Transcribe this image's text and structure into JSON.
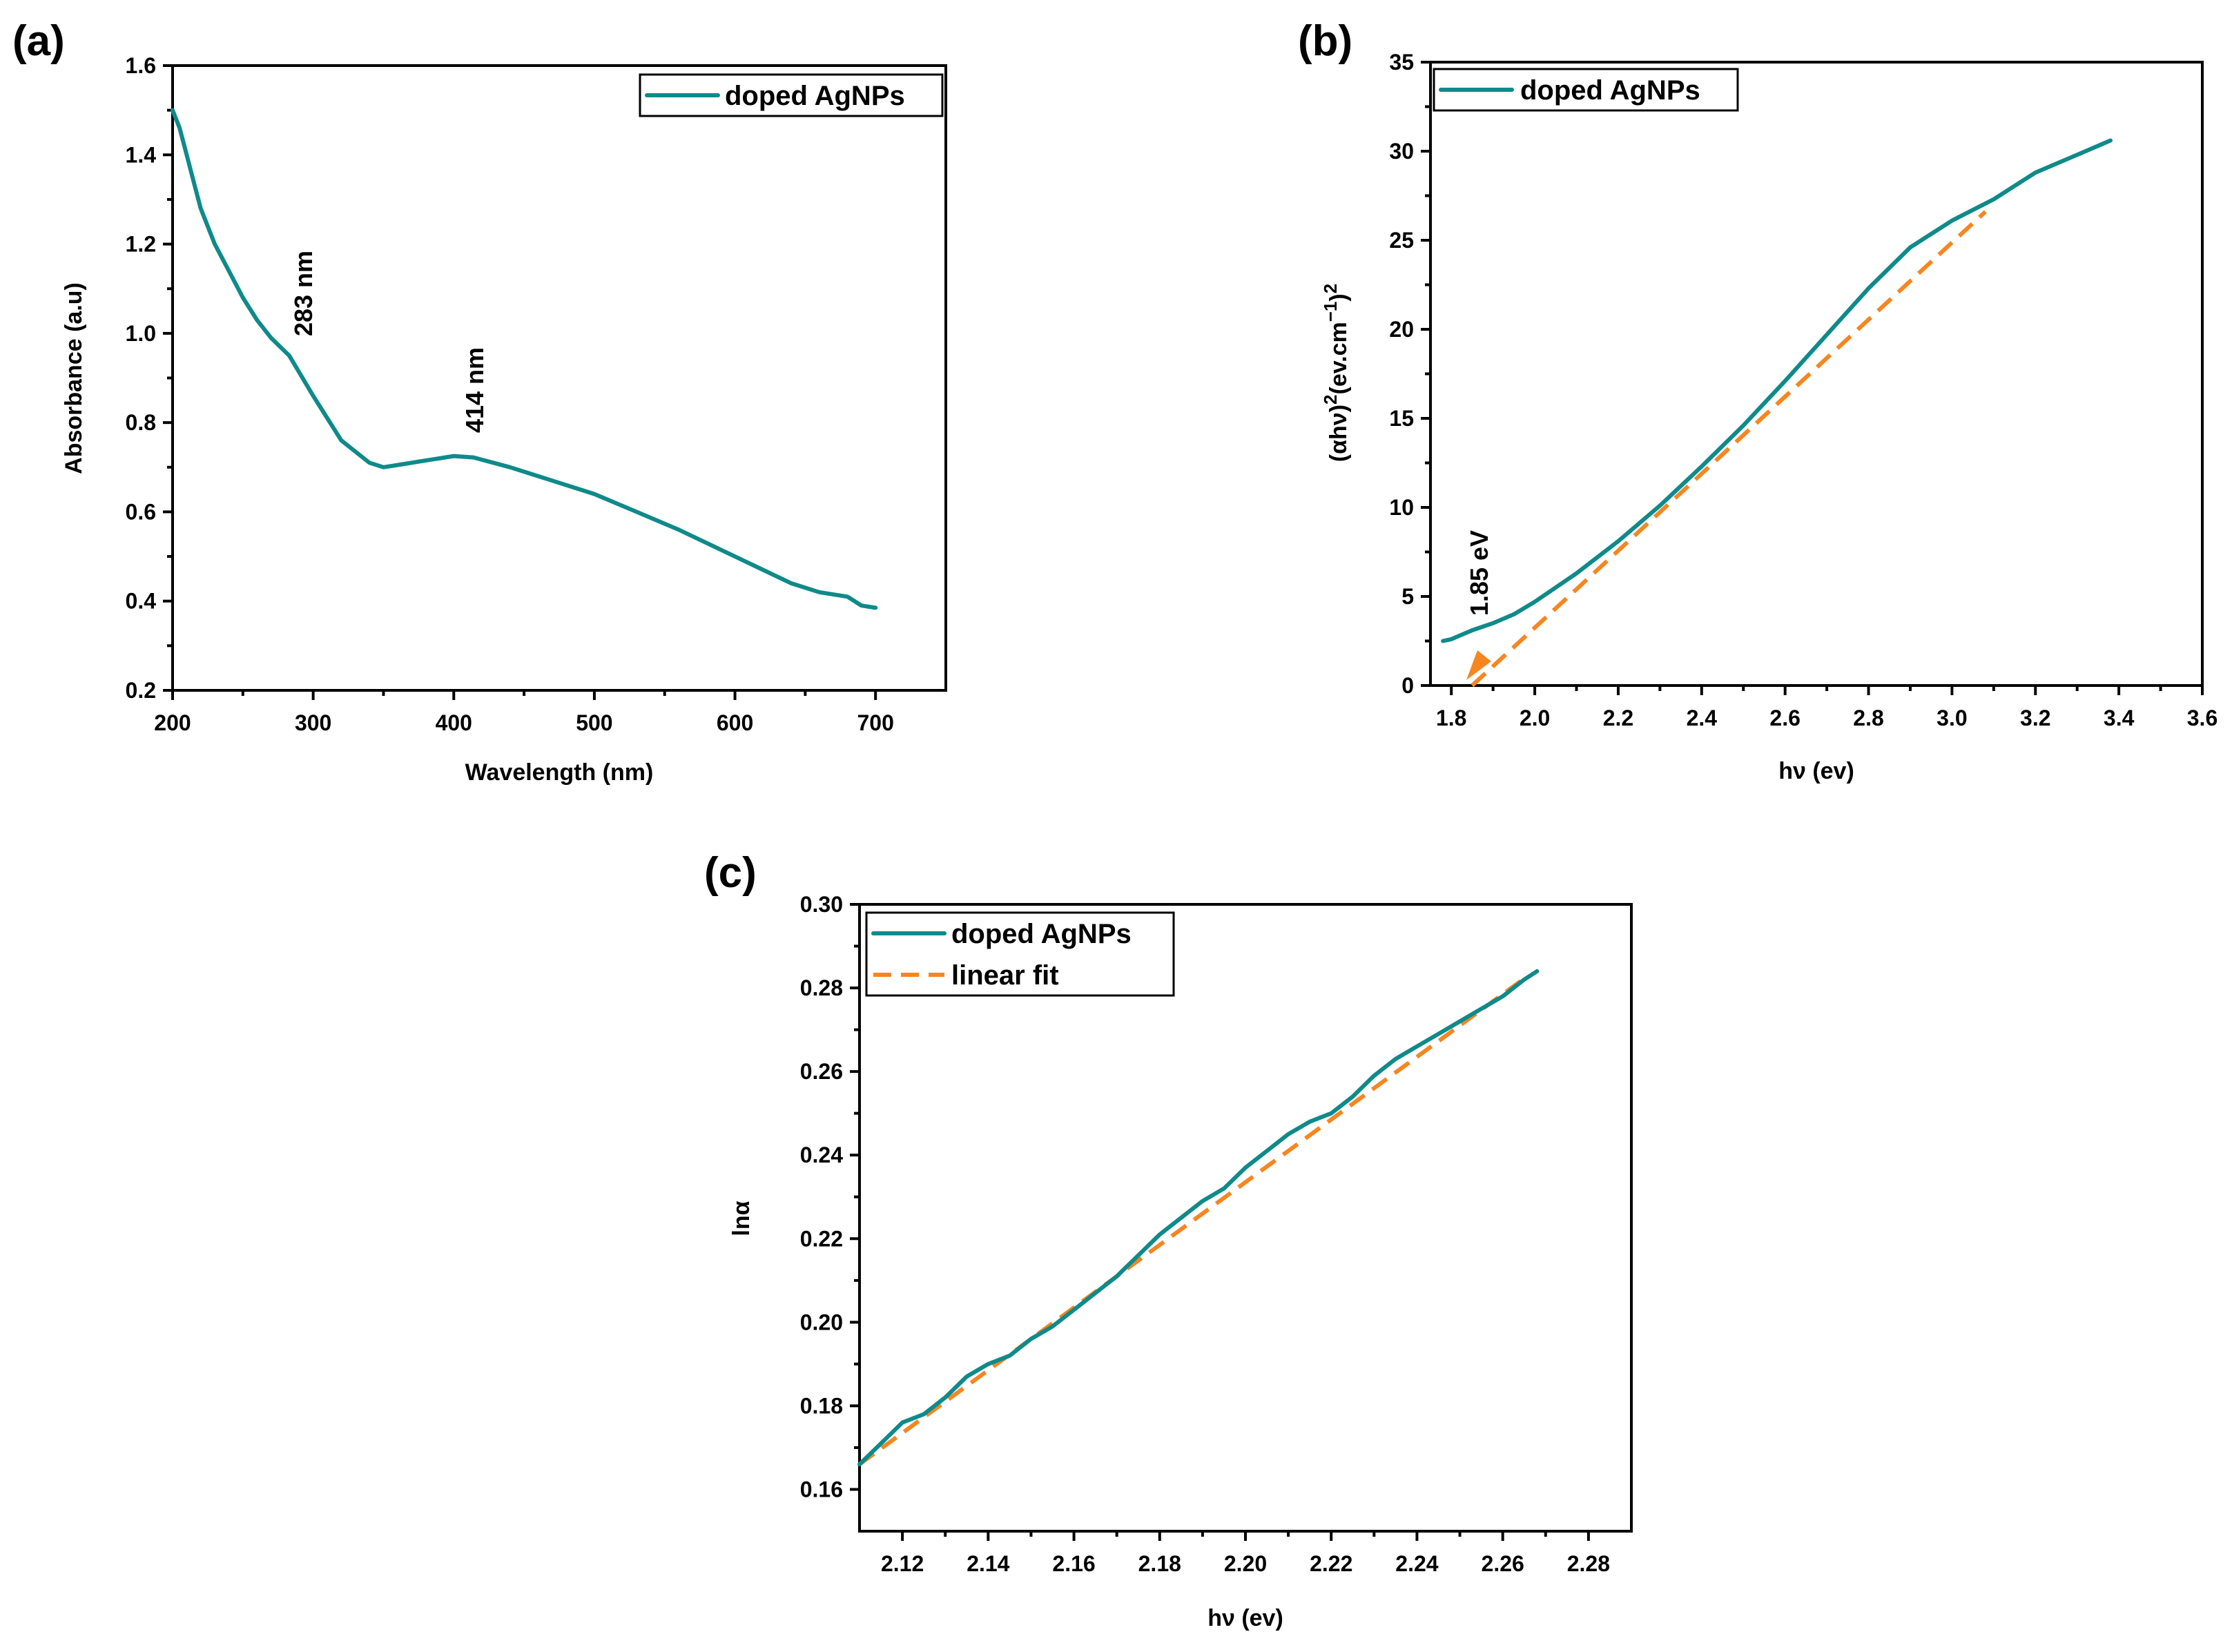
{
  "colors": {
    "data": "#0f8a8a",
    "fit": "#f6861f"
  },
  "chart_data": [
    {
      "panel_label": "(a)",
      "type": "line",
      "title": "",
      "xlabel": "Wavelength (nm)",
      "ylabel": "Absorbance (a.u)",
      "xlim": [
        200,
        750
      ],
      "ylim": [
        0.2,
        1.6
      ],
      "xticks": [
        200,
        300,
        400,
        500,
        600,
        700
      ],
      "yticks": [
        0.2,
        0.4,
        0.6,
        0.8,
        1.0,
        1.2,
        1.4,
        1.6
      ],
      "xtick_labels": [
        "200",
        "300",
        "400",
        "500",
        "600",
        "700"
      ],
      "ytick_labels": [
        "0.2",
        "0.4",
        "0.6",
        "0.8",
        "1.0",
        "1.2",
        "1.4",
        "1.6"
      ],
      "legend": [
        "doped AgNPs"
      ],
      "legend_position": "top-right",
      "annotations": [
        {
          "text": "283 nm",
          "x": 293,
          "y": 1.0
        },
        {
          "text": "414 nm",
          "x": 414,
          "y": 0.8
        }
      ],
      "series": [
        {
          "name": "doped AgNPs",
          "x": [
            200,
            205,
            210,
            215,
            220,
            230,
            240,
            250,
            260,
            270,
            283,
            300,
            320,
            340,
            350,
            360,
            380,
            400,
            414,
            440,
            470,
            500,
            530,
            560,
            600,
            620,
            640,
            660,
            680,
            690,
            700
          ],
          "y": [
            1.5,
            1.46,
            1.4,
            1.34,
            1.28,
            1.2,
            1.14,
            1.08,
            1.03,
            0.99,
            0.95,
            0.86,
            0.76,
            0.71,
            0.7,
            0.705,
            0.715,
            0.725,
            0.722,
            0.7,
            0.67,
            0.64,
            0.6,
            0.56,
            0.5,
            0.47,
            0.44,
            0.42,
            0.41,
            0.39,
            0.385
          ]
        }
      ]
    },
    {
      "panel_label": "(b)",
      "type": "line",
      "title": "",
      "xlabel": "hν (ev)",
      "ylabel_main": "(αhν)",
      "ylabel_sup1": "2",
      "ylabel_mid": "(ev.cm",
      "ylabel_sup2": "−1",
      "ylabel_close": ")",
      "ylabel_sup3": "2",
      "xlim": [
        1.75,
        3.6
      ],
      "ylim": [
        0,
        35
      ],
      "xticks": [
        1.8,
        2.0,
        2.2,
        2.4,
        2.6,
        2.8,
        3.0,
        3.2,
        3.4,
        3.6
      ],
      "yticks": [
        0,
        5,
        10,
        15,
        20,
        25,
        30,
        35
      ],
      "xtick_labels": [
        "1.8",
        "2.0",
        "2.2",
        "2.4",
        "2.6",
        "2.8",
        "3.0",
        "3.2",
        "3.4",
        "3.6"
      ],
      "ytick_labels": [
        "0",
        "5",
        "10",
        "15",
        "20",
        "25",
        "30",
        "35"
      ],
      "legend": [
        "doped AgNPs"
      ],
      "legend_position": "top-left",
      "annotations": [
        {
          "text": "1.85 eV",
          "x": 1.85,
          "y": 0
        }
      ],
      "series": [
        {
          "name": "doped AgNPs",
          "x": [
            1.78,
            1.8,
            1.85,
            1.9,
            1.95,
            2.0,
            2.1,
            2.2,
            2.3,
            2.4,
            2.5,
            2.6,
            2.7,
            2.8,
            2.9,
            3.0,
            3.1,
            3.2,
            3.3,
            3.38
          ],
          "y": [
            2.5,
            2.6,
            3.1,
            3.5,
            4.0,
            4.7,
            6.3,
            8.1,
            10.1,
            12.3,
            14.6,
            17.1,
            19.7,
            22.3,
            24.6,
            26.1,
            27.3,
            28.8,
            29.8,
            30.6
          ]
        },
        {
          "name": "linear fit",
          "style": "dashed",
          "x": [
            1.85,
            3.08
          ],
          "y": [
            0,
            26.6
          ]
        }
      ]
    },
    {
      "panel_label": "(c)",
      "type": "line",
      "title": "",
      "xlabel": "hν (ev)",
      "ylabel": "lnα",
      "xlim": [
        2.11,
        2.29
      ],
      "ylim": [
        0.15,
        0.3
      ],
      "xticks": [
        2.12,
        2.14,
        2.16,
        2.18,
        2.2,
        2.22,
        2.24,
        2.26,
        2.28
      ],
      "yticks": [
        0.16,
        0.18,
        0.2,
        0.22,
        0.24,
        0.26,
        0.28,
        0.3
      ],
      "xtick_labels": [
        "2.12",
        "2.14",
        "2.16",
        "2.18",
        "2.20",
        "2.22",
        "2.24",
        "2.26",
        "2.28"
      ],
      "ytick_labels": [
        "0.16",
        "0.18",
        "0.20",
        "0.22",
        "0.24",
        "0.26",
        "0.28",
        "0.30"
      ],
      "legend": [
        "doped AgNPs",
        "linear fit"
      ],
      "legend_position": "top-left",
      "series": [
        {
          "name": "doped AgNPs",
          "x": [
            2.11,
            2.115,
            2.12,
            2.125,
            2.13,
            2.135,
            2.14,
            2.145,
            2.15,
            2.155,
            2.16,
            2.165,
            2.17,
            2.175,
            2.18,
            2.185,
            2.19,
            2.195,
            2.2,
            2.205,
            2.21,
            2.215,
            2.22,
            2.225,
            2.23,
            2.235,
            2.24,
            2.245,
            2.25,
            2.255,
            2.26,
            2.265,
            2.268
          ],
          "y": [
            0.166,
            0.171,
            0.176,
            0.178,
            0.182,
            0.187,
            0.19,
            0.192,
            0.196,
            0.199,
            0.203,
            0.207,
            0.211,
            0.216,
            0.221,
            0.225,
            0.229,
            0.232,
            0.237,
            0.241,
            0.245,
            0.248,
            0.25,
            0.254,
            0.259,
            0.263,
            0.266,
            0.269,
            0.272,
            0.275,
            0.278,
            0.282,
            0.284
          ]
        },
        {
          "name": "linear fit",
          "style": "dashed",
          "x": [
            2.11,
            2.266
          ],
          "y": [
            0.166,
            0.283
          ]
        }
      ]
    }
  ]
}
